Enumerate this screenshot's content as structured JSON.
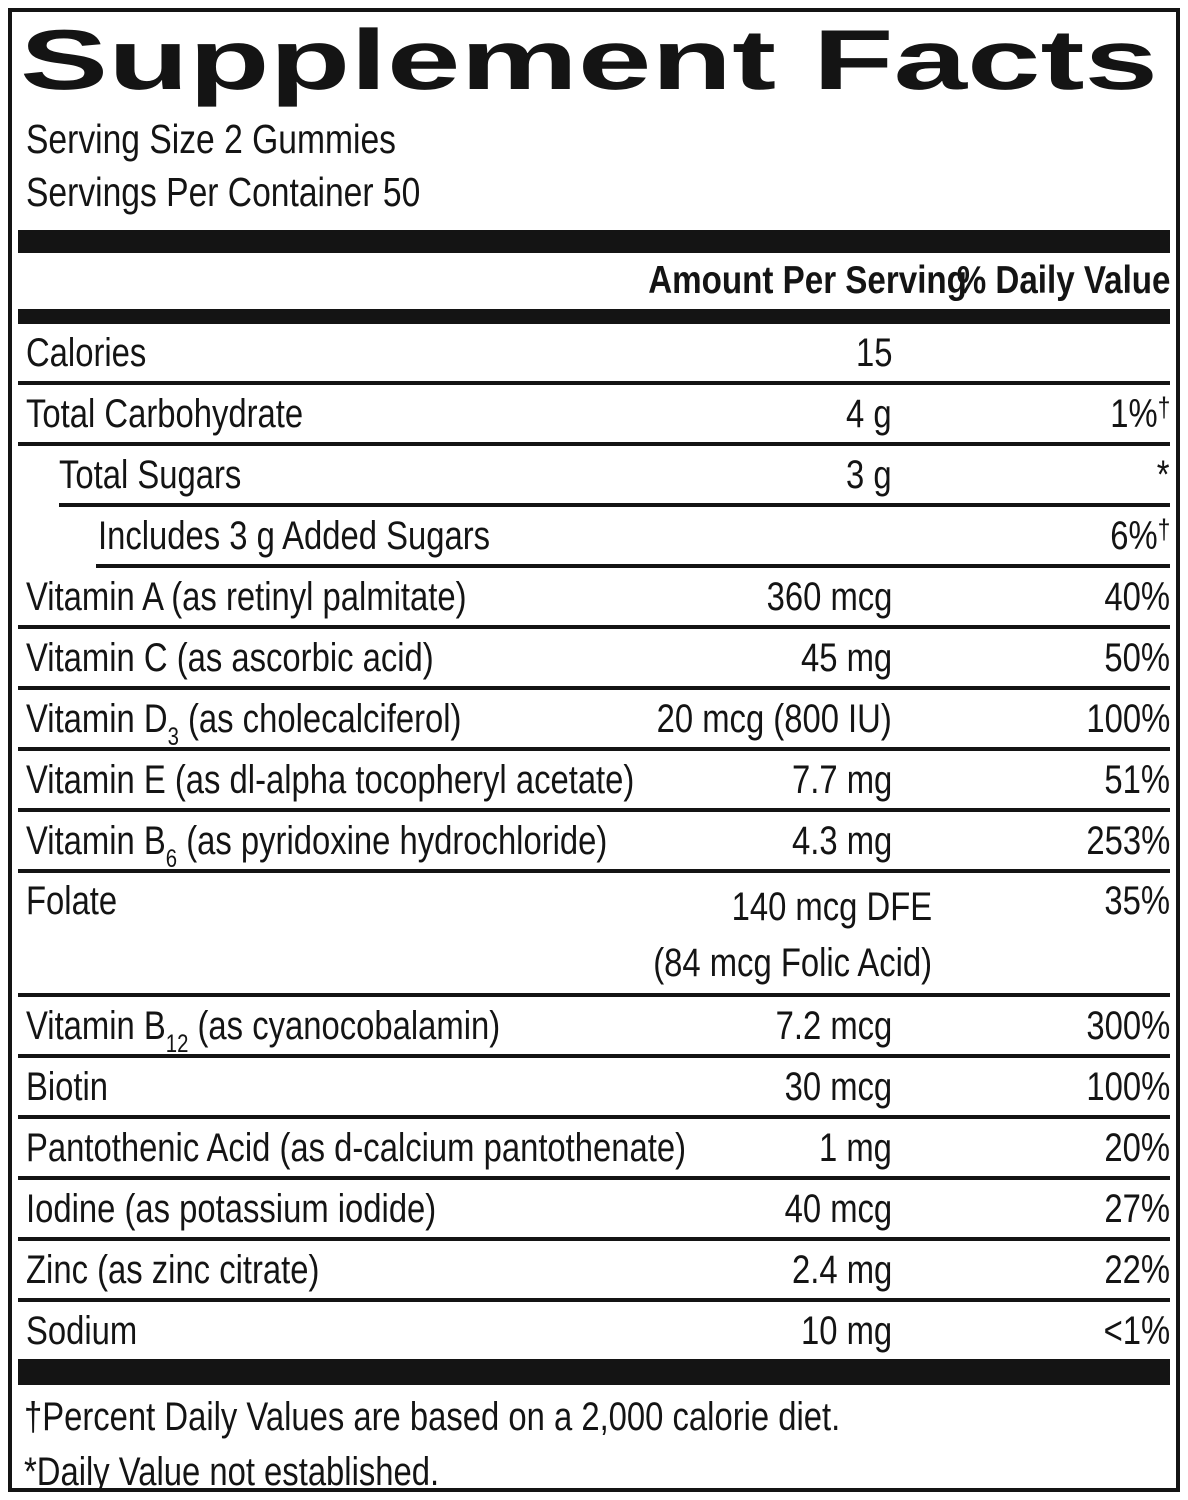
{
  "title": "Supplement Facts",
  "serving": {
    "size": "Serving Size 2 Gummies",
    "per_container": "Servings Per Container 50"
  },
  "columns": {
    "amount": "Amount Per Serving",
    "dv": "% Daily Value"
  },
  "rows": [
    {
      "label": "Calories",
      "amount": "15",
      "dv": "",
      "indent": 0,
      "sep": "none"
    },
    {
      "label": "Total Carbohydrate",
      "amount": "4 g",
      "dv": "1%",
      "dv_sup": "†",
      "indent": 0,
      "sep": "full"
    },
    {
      "label": "Total Sugars",
      "amount": "3 g",
      "dv": "*",
      "indent": 1,
      "sep": "full"
    },
    {
      "label": "Includes 3 g Added Sugars",
      "amount": "",
      "dv": "6%",
      "dv_sup": "†",
      "indent": 2,
      "sep": "indent1"
    },
    {
      "label": "Vitamin A (as retinyl palmitate)",
      "amount": "360 mcg",
      "dv": "40%",
      "indent": 0,
      "sep": "indent2"
    },
    {
      "label": "Vitamin C (as ascorbic acid)",
      "amount": "45 mg",
      "dv": "50%",
      "indent": 0,
      "sep": "full"
    },
    {
      "label": "Vitamin D",
      "sub": "3",
      "label_rest": " (as cholecalciferol)",
      "amount": "20 mcg (800 IU)",
      "dv": "100%",
      "indent": 0,
      "sep": "full"
    },
    {
      "label": "Vitamin E (as dl-alpha tocopheryl acetate)",
      "amount": "7.7 mg",
      "dv": "51%",
      "indent": 0,
      "sep": "full"
    },
    {
      "label": "Vitamin B",
      "sub": "6",
      "label_rest": " (as pyridoxine hydrochloride)",
      "amount": "4.3 mg",
      "dv": "253%",
      "indent": 0,
      "sep": "full"
    },
    {
      "label": "Folate",
      "amount": "140 mcg DFE",
      "amount2": "(84 mcg Folic Acid)",
      "dv": "35%",
      "indent": 0,
      "sep": "full"
    },
    {
      "label": "Vitamin B",
      "sub": "12",
      "label_rest": " (as cyanocobalamin)",
      "amount": "7.2 mcg",
      "dv": "300%",
      "indent": 0,
      "sep": "full"
    },
    {
      "label": "Biotin",
      "amount": "30 mcg",
      "dv": "100%",
      "indent": 0,
      "sep": "full"
    },
    {
      "label": "Pantothenic Acid (as d-calcium pantothenate)",
      "amount": "1 mg",
      "dv": "20%",
      "indent": 0,
      "sep": "full"
    },
    {
      "label": "Iodine (as potassium iodide)",
      "amount": "40 mcg",
      "dv": "27%",
      "indent": 0,
      "sep": "full"
    },
    {
      "label": "Zinc (as zinc citrate)",
      "amount": "2.4 mg",
      "dv": "22%",
      "indent": 0,
      "sep": "full"
    },
    {
      "label": "Sodium",
      "amount": "10 mg",
      "dv": "<1%",
      "indent": 0,
      "sep": "full"
    }
  ],
  "footnotes": [
    "†Percent Daily Values are based on a 2,000 calorie diet.",
    "*Daily Value not established."
  ],
  "colors": {
    "ink": "#141414",
    "background": "#ffffff"
  }
}
